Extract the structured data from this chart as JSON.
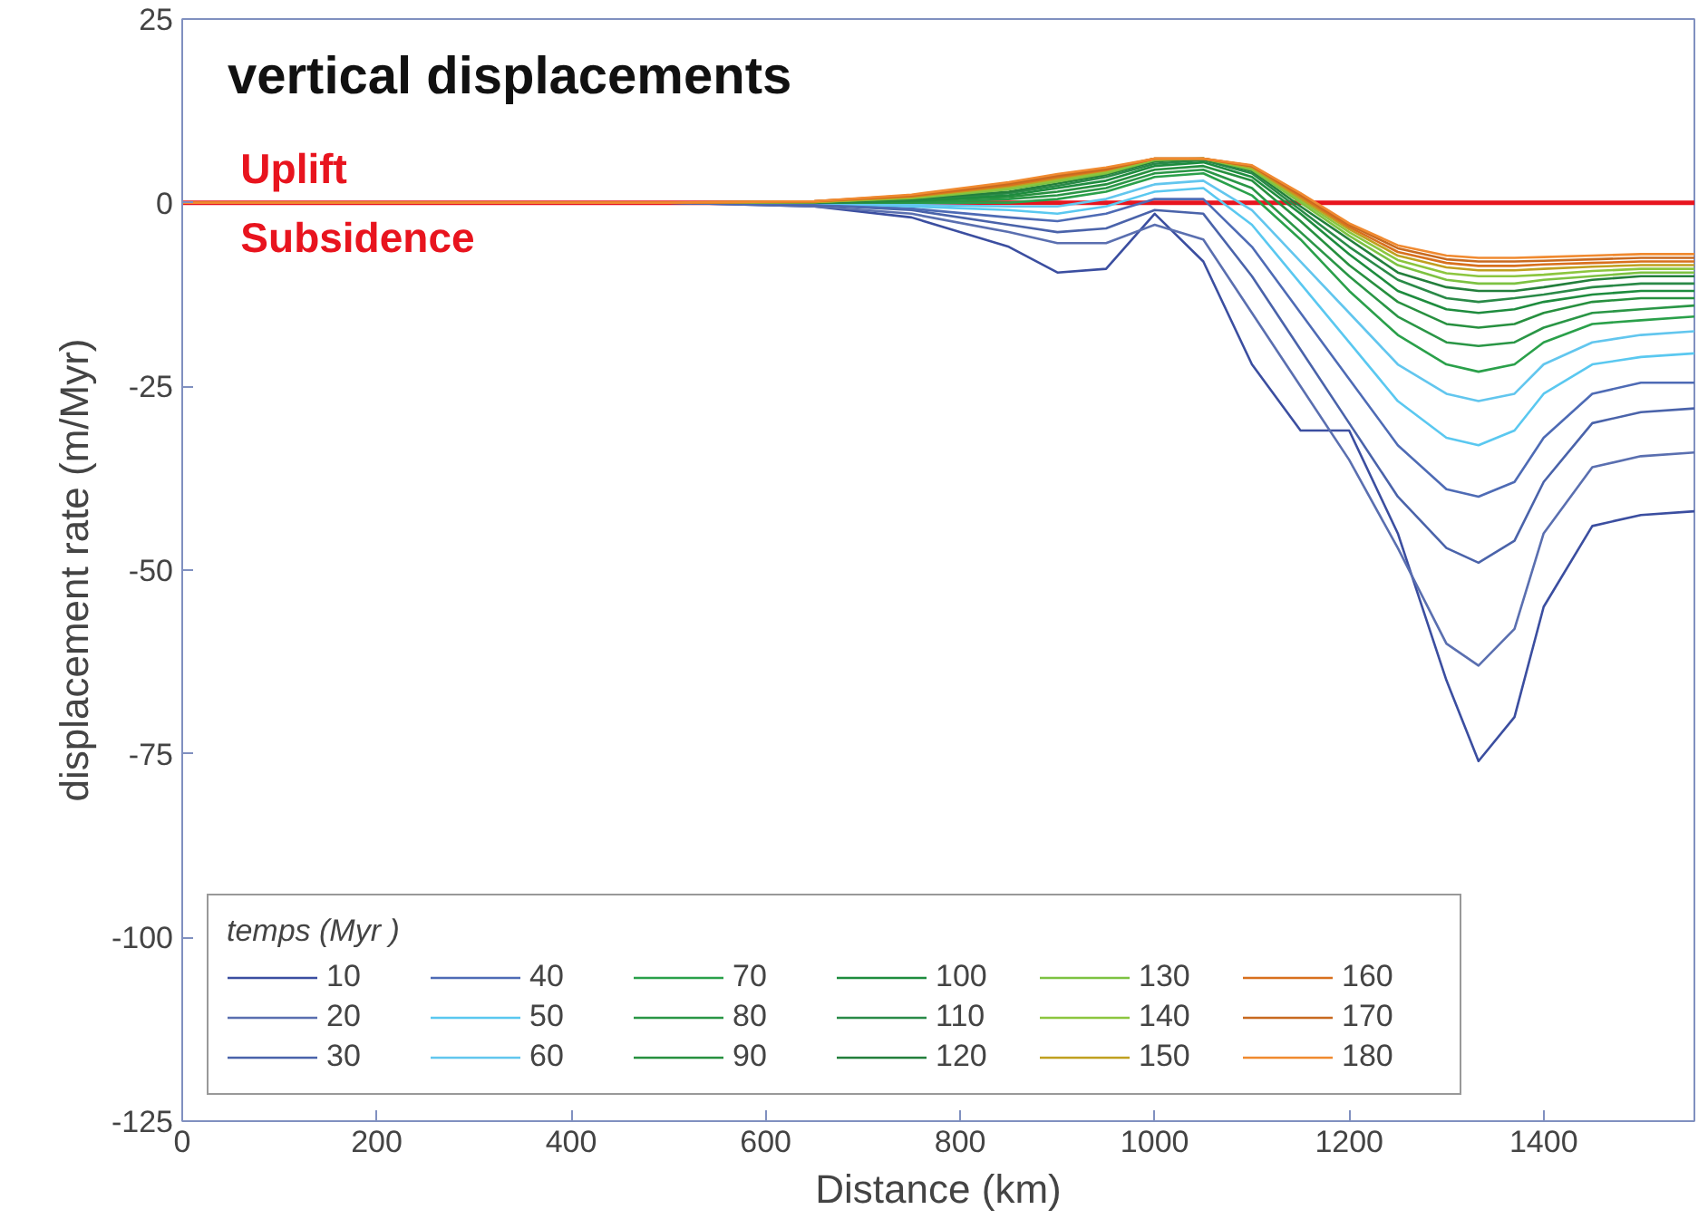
{
  "chart_data": {
    "type": "line",
    "title": "vertical displacements",
    "xlabel": "Distance (km)",
    "ylabel": "displacement rate (m/Myr)",
    "legend_title": "temps (Myr )",
    "legend": "bottom left",
    "grid": false,
    "marker": "none",
    "line_style": "solid",
    "x": [
      0,
      500,
      650,
      750,
      850,
      900,
      950,
      1000,
      1050,
      1100,
      1150,
      1200,
      1250,
      1300,
      1333,
      1370,
      1400,
      1450,
      1500,
      1555
    ],
    "xlim": [
      0,
      1555
    ],
    "ylim": [
      -125,
      25
    ],
    "xticks": [
      0,
      200,
      400,
      600,
      800,
      1000,
      1200,
      1400
    ],
    "yticks": [
      25,
      0,
      -25,
      -50,
      -75,
      -100,
      -125
    ],
    "ref_lines": [
      {
        "axis": "y",
        "value": 0,
        "color": "#e8141e"
      }
    ],
    "annotations": [
      "Uplift",
      "Subsidence"
    ],
    "series": [
      {
        "name": "10",
        "color": "#3b4ea0",
        "values": [
          0,
          0,
          -0.5,
          -2,
          -6,
          -9.5,
          -9,
          -1.5,
          -8,
          -22,
          -31,
          -31,
          -45,
          -65,
          -76,
          -70,
          -55,
          -44,
          -42.5,
          -42
        ]
      },
      {
        "name": "20",
        "color": "#5a6fb0",
        "values": [
          0,
          0,
          -0.5,
          -1.5,
          -4,
          -5.5,
          -5.5,
          -3,
          -5,
          -15,
          -25,
          -35,
          -47,
          -60,
          -63,
          -58,
          -45,
          -36,
          -34.5,
          -34
        ]
      },
      {
        "name": "30",
        "color": "#4a63aa",
        "values": [
          0,
          0,
          -0.3,
          -1,
          -3,
          -4,
          -3.5,
          -1,
          -1.5,
          -10,
          -20,
          -30,
          -40,
          -47,
          -49,
          -46,
          -38,
          -30,
          -28.5,
          -28
        ]
      },
      {
        "name": "40",
        "color": "#4e6bb5",
        "values": [
          0,
          0,
          -0.2,
          -0.8,
          -2,
          -2.5,
          -1.5,
          0.5,
          0.5,
          -6,
          -15,
          -24,
          -33,
          -39,
          -40,
          -38,
          -32,
          -26,
          -24.5,
          -24.5
        ]
      },
      {
        "name": "50",
        "color": "#5ac8f0",
        "values": [
          0,
          0,
          0,
          -0.5,
          -1,
          -1.5,
          -0.5,
          1.5,
          2,
          -3,
          -11,
          -19,
          -27,
          -32,
          -33,
          -31,
          -26,
          -22,
          -21,
          -20.5
        ]
      },
      {
        "name": "60",
        "color": "#62c6ee",
        "values": [
          0,
          0,
          0,
          -0.3,
          -0.5,
          -0.5,
          0.5,
          2.5,
          3,
          -1,
          -8,
          -15,
          -22,
          -26,
          -27,
          -26,
          -22,
          -19,
          -18,
          -17.5
        ]
      },
      {
        "name": "70",
        "color": "#2aa04a",
        "values": [
          0,
          0,
          0,
          0,
          0,
          0.5,
          1.5,
          3.5,
          4,
          1,
          -5,
          -12,
          -18,
          -22,
          -23,
          -22,
          -19,
          -16.5,
          -16,
          -15.5
        ]
      },
      {
        "name": "80",
        "color": "#2a9646",
        "values": [
          0,
          0,
          0,
          0,
          0.5,
          1,
          2,
          4,
          4.5,
          2,
          -4,
          -10,
          -15.5,
          -19,
          -19.5,
          -19,
          -17,
          -15,
          -14.5,
          -14
        ]
      },
      {
        "name": "90",
        "color": "#27903f",
        "values": [
          0,
          0,
          0,
          0.2,
          0.8,
          1.5,
          2.5,
          4.5,
          5,
          3,
          -2.5,
          -8.5,
          -13.5,
          -16.5,
          -17,
          -16.5,
          -15,
          -13.5,
          -13,
          -13
        ]
      },
      {
        "name": "100",
        "color": "#1e8c3e",
        "values": [
          0,
          0,
          0,
          0.3,
          1,
          2,
          3,
          5,
          5.5,
          3.5,
          -1.5,
          -7,
          -12,
          -14.5,
          -15,
          -14.5,
          -13.5,
          -12.5,
          -12,
          -12
        ]
      },
      {
        "name": "110",
        "color": "#2a8a48",
        "values": [
          0,
          0,
          0,
          0.4,
          1.3,
          2.3,
          3.5,
          5.3,
          5.8,
          4,
          -1,
          -6,
          -10.5,
          -13,
          -13.5,
          -13,
          -12.5,
          -11.5,
          -11,
          -11
        ]
      },
      {
        "name": "120",
        "color": "#237f3c",
        "values": [
          0,
          0,
          0.1,
          0.5,
          1.5,
          2.6,
          3.8,
          5.6,
          6,
          4.3,
          -0.5,
          -5,
          -9.5,
          -11.5,
          -12,
          -12,
          -11.5,
          -10.5,
          -10,
          -10
        ]
      },
      {
        "name": "130",
        "color": "#7dc242",
        "values": [
          0,
          0,
          0.1,
          0.6,
          1.8,
          2.9,
          4,
          5.8,
          6,
          4.5,
          0,
          -4.5,
          -8.5,
          -10.5,
          -11,
          -11,
          -10.5,
          -10,
          -9.5,
          -9.5
        ]
      },
      {
        "name": "140",
        "color": "#8cc63f",
        "values": [
          0,
          0,
          0.1,
          0.7,
          2,
          3.1,
          4.2,
          5.9,
          6,
          4.7,
          0.3,
          -4,
          -7.8,
          -9.6,
          -10,
          -10,
          -9.8,
          -9.3,
          -9,
          -9
        ]
      },
      {
        "name": "150",
        "color": "#c0a020",
        "values": [
          0,
          0,
          0.1,
          0.8,
          2.2,
          3.3,
          4.4,
          6,
          6,
          4.8,
          0.6,
          -3.6,
          -7.2,
          -8.8,
          -9.2,
          -9.2,
          -9,
          -8.7,
          -8.5,
          -8.5
        ]
      },
      {
        "name": "160",
        "color": "#d8701e",
        "values": [
          0,
          0,
          0.2,
          0.9,
          2.4,
          3.5,
          4.5,
          6,
          6,
          5,
          0.9,
          -3.3,
          -6.7,
          -8.2,
          -8.6,
          -8.6,
          -8.4,
          -8.2,
          -8,
          -8
        ]
      },
      {
        "name": "170",
        "color": "#c86a20",
        "values": [
          0,
          0,
          0.2,
          1,
          2.6,
          3.7,
          4.6,
          6,
          6,
          5,
          1.1,
          -3,
          -6.2,
          -7.7,
          -8,
          -8,
          -7.9,
          -7.7,
          -7.5,
          -7.5
        ]
      },
      {
        "name": "180",
        "color": "#f08a30",
        "values": [
          0,
          0,
          0.2,
          1.1,
          2.8,
          3.9,
          4.8,
          6,
          6,
          5.1,
          1.3,
          -2.8,
          -5.8,
          -7.2,
          -7.5,
          -7.5,
          -7.4,
          -7.2,
          -7,
          -7
        ]
      }
    ]
  }
}
